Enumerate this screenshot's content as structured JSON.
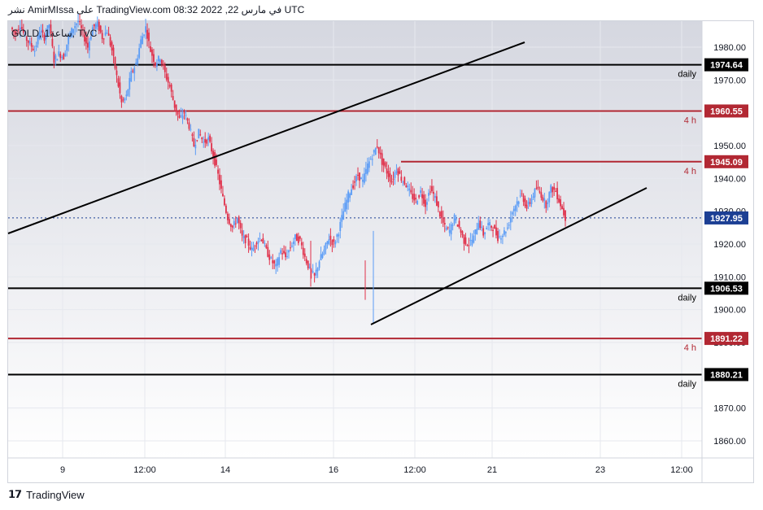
{
  "header": {
    "publish_line": "نشر AmirMIssa على TradingView.com في مارس 22, 2022 08:32 UTC",
    "symbol_line": "GOLD, 1ساعة, TVC"
  },
  "footer": {
    "brand": "TradingView"
  },
  "colors": {
    "up": "#5b9cf6",
    "down": "#e0304a",
    "daily_line": "#000000",
    "h4_line": "#b22833",
    "last_price": "#1c3f94"
  },
  "chart_data": {
    "type": "candlestick",
    "symbol": "GOLD",
    "timeframe": "1ساعة",
    "source": "TVC",
    "ylim": [
      1855,
      1989
    ],
    "y_ticks": [
      "1860.00",
      "1870.00",
      "1880.00",
      "1890.00",
      "1900.00",
      "1910.00",
      "1920.00",
      "1930.00",
      "1940.00",
      "1950.00",
      "1960.00",
      "1970.00",
      "1980.00"
    ],
    "x_ticks": [
      "9",
      "12:00",
      "14",
      "16",
      "12:00",
      "21",
      "23",
      "12:00"
    ],
    "levels": [
      {
        "value": 1974.64,
        "label": "1974.64",
        "name": "daily",
        "kind": "daily"
      },
      {
        "value": 1960.55,
        "label": "1960.55",
        "name": "4 h",
        "kind": "h4"
      },
      {
        "value": 1945.09,
        "label": "1945.09",
        "name": "4 h",
        "kind": "h4"
      },
      {
        "value": 1906.53,
        "label": "1906.53",
        "name": "daily",
        "kind": "daily"
      },
      {
        "value": 1891.22,
        "label": "1891.22",
        "name": "4 h",
        "kind": "h4"
      },
      {
        "value": 1880.21,
        "label": "1880.21",
        "name": "daily",
        "kind": "daily"
      }
    ],
    "last_price": {
      "value": 1927.95,
      "label": "1927.95"
    },
    "trendlines": [
      {
        "from": [
          "9 (before)",
          1924
        ],
        "to": [
          "21 (after)",
          1982
        ]
      },
      {
        "from": [
          "16 (after)",
          1895
        ],
        "to": [
          "23 (after)",
          1937
        ]
      }
    ],
    "close_path": [
      1986,
      1984,
      1987,
      1983,
      1981,
      1979,
      1985,
      1983,
      1987,
      1976,
      1978,
      1977,
      1983,
      1986,
      1988,
      1984,
      1980,
      1986,
      1987,
      1983,
      1985,
      1979,
      1971,
      1963,
      1965,
      1972,
      1975,
      1982,
      1986,
      1979,
      1975,
      1977,
      1972,
      1968,
      1962,
      1958,
      1960,
      1956,
      1950,
      1954,
      1951,
      1952,
      1947,
      1941,
      1934,
      1928,
      1925,
      1928,
      1922,
      1921,
      1918,
      1921,
      1922,
      1918,
      1915,
      1913,
      1918,
      1916,
      1919,
      1922,
      1921,
      1916,
      1912,
      1910,
      1915,
      1918,
      1922,
      1920,
      1924,
      1930,
      1935,
      1938,
      1941,
      1939,
      1944,
      1947,
      1950,
      1945,
      1942,
      1939,
      1943,
      1940,
      1938,
      1935,
      1933,
      1936,
      1932,
      1937,
      1934,
      1929,
      1925,
      1924,
      1928,
      1925,
      1921,
      1920,
      1922,
      1927,
      1923,
      1926,
      1925,
      1922,
      1923,
      1925,
      1930,
      1933,
      1935,
      1931,
      1934,
      1937,
      1935,
      1932,
      1937,
      1936,
      1932,
      1928
    ]
  }
}
